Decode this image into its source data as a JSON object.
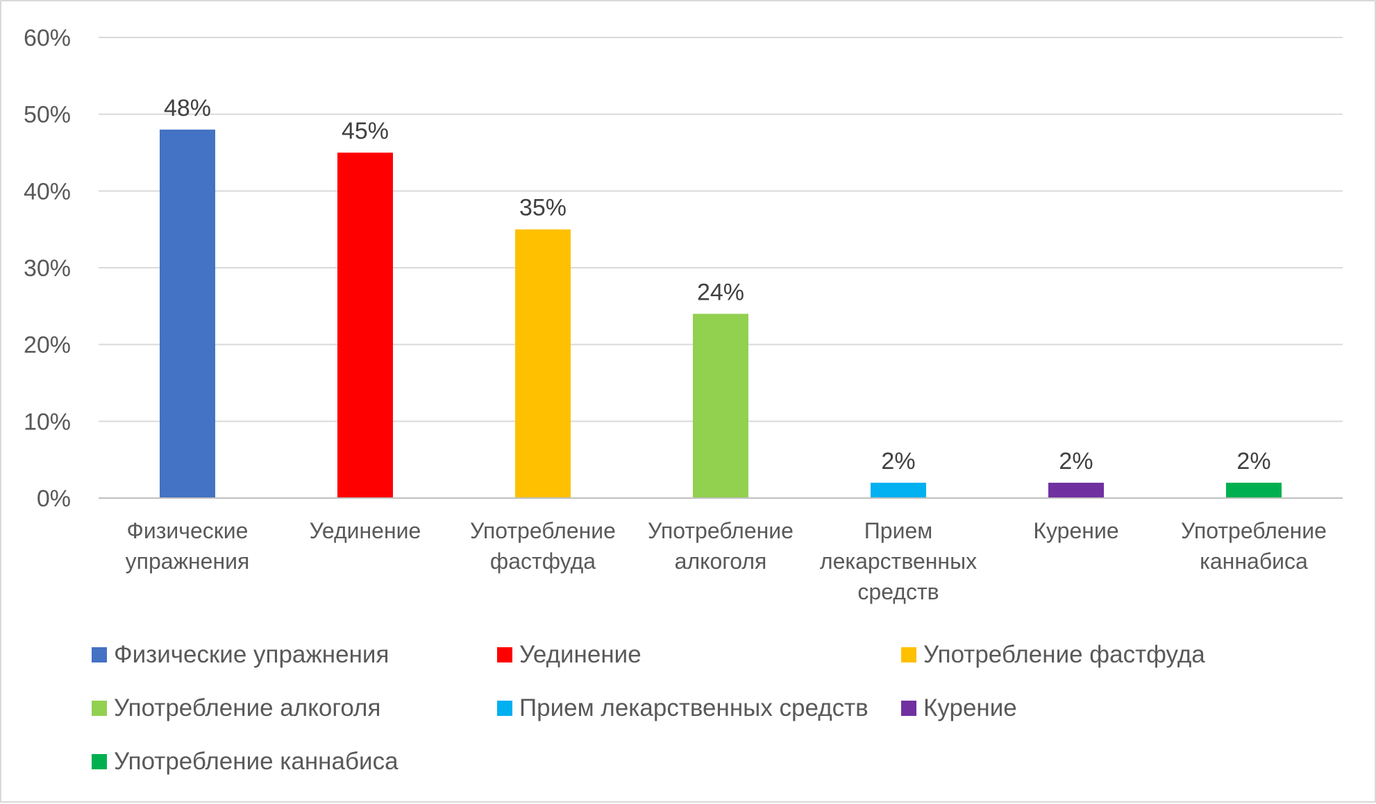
{
  "chart_data": {
    "type": "bar",
    "title": "",
    "xlabel": "",
    "ylabel": "",
    "categories": [
      "Физические упражнения",
      "Уединение",
      "Употребление фастфуда",
      "Употребление алкоголя",
      "Прием лекарственных средств",
      "Курение",
      "Употребление каннабиса"
    ],
    "category_label_lines": [
      [
        "Физические",
        "упражнения"
      ],
      [
        "Уединение"
      ],
      [
        "Употребление",
        "фастфуда"
      ],
      [
        "Употребление",
        "алкоголя"
      ],
      [
        "Прием",
        "лекарственных",
        "средств"
      ],
      [
        "Курение"
      ],
      [
        "Употребление",
        "каннабиса"
      ]
    ],
    "values": [
      48,
      45,
      35,
      24,
      2,
      2,
      2
    ],
    "data_labels": [
      "48%",
      "45%",
      "35%",
      "24%",
      "2%",
      "2%",
      "2%"
    ],
    "colors": [
      "#4472C4",
      "#FF0000",
      "#FFC000",
      "#92D050",
      "#00B0F0",
      "#7030A0",
      "#00B050"
    ],
    "ylim": [
      0,
      60
    ],
    "yticks": [
      0,
      10,
      20,
      30,
      40,
      50,
      60
    ],
    "ytick_labels": [
      "0%",
      "10%",
      "20%",
      "30%",
      "40%",
      "50%",
      "60%"
    ],
    "grid": true,
    "legend": {
      "placement": "bottom",
      "entries": [
        "Физические упражнения",
        "Уединение",
        "Употребление фастфуда",
        "Употребление алкоголя",
        "Прием лекарственных средств",
        "Курение",
        "Употребление каннабиса"
      ]
    }
  }
}
